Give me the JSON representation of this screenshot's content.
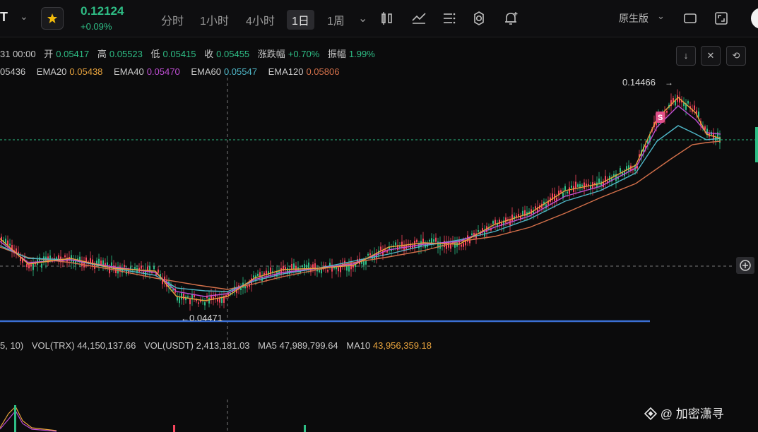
{
  "header": {
    "symbol": "T",
    "price": "0.12124",
    "change": "+0.09%",
    "timeframes": [
      "分时",
      "1小时",
      "4小时",
      "1日",
      "1周"
    ],
    "active_timeframe": "1日",
    "mode": "原生版"
  },
  "ohlc": {
    "date": "31 00:00",
    "open_label": "开",
    "open": "0.05417",
    "high_label": "高",
    "high": "0.05523",
    "low_label": "低",
    "low": "0.05415",
    "close_label": "收",
    "close": "0.05455",
    "change_label": "涨跌幅",
    "change": "+0.70%",
    "amp_label": "振幅",
    "amp": "1.99%"
  },
  "ema": {
    "ema10_value": "05436",
    "ema20_label": "EMA20",
    "ema20": "0.05438",
    "ema20_color": "#e8a33d",
    "ema40_label": "EMA40",
    "ema40": "0.05470",
    "ema40_color": "#c14fd6",
    "ema60_label": "EMA60",
    "ema60": "0.05547",
    "ema60_color": "#4fb8c9",
    "ema120_label": "EMA120",
    "ema120": "0.05806",
    "ema120_color": "#d4704a"
  },
  "annotations": {
    "high_marker": "0.14466",
    "low_marker": "0.04471",
    "badge": "S"
  },
  "volume": {
    "params": "5, 10)",
    "vol_trx_label": "VOL(TRX)",
    "vol_trx": "44,150,137.66",
    "vol_usdt_label": "VOL(USDT)",
    "vol_usdt": "2,413,181.03",
    "ma5_label": "MA5",
    "ma5": "47,989,799.64",
    "ma10_label": "MA10",
    "ma10": "43,956,359.18"
  },
  "watermark": "@ 加密潇寻",
  "colors": {
    "up": "#2ebd85",
    "down": "#f6465d",
    "support_line": "#3b6fd4"
  }
}
